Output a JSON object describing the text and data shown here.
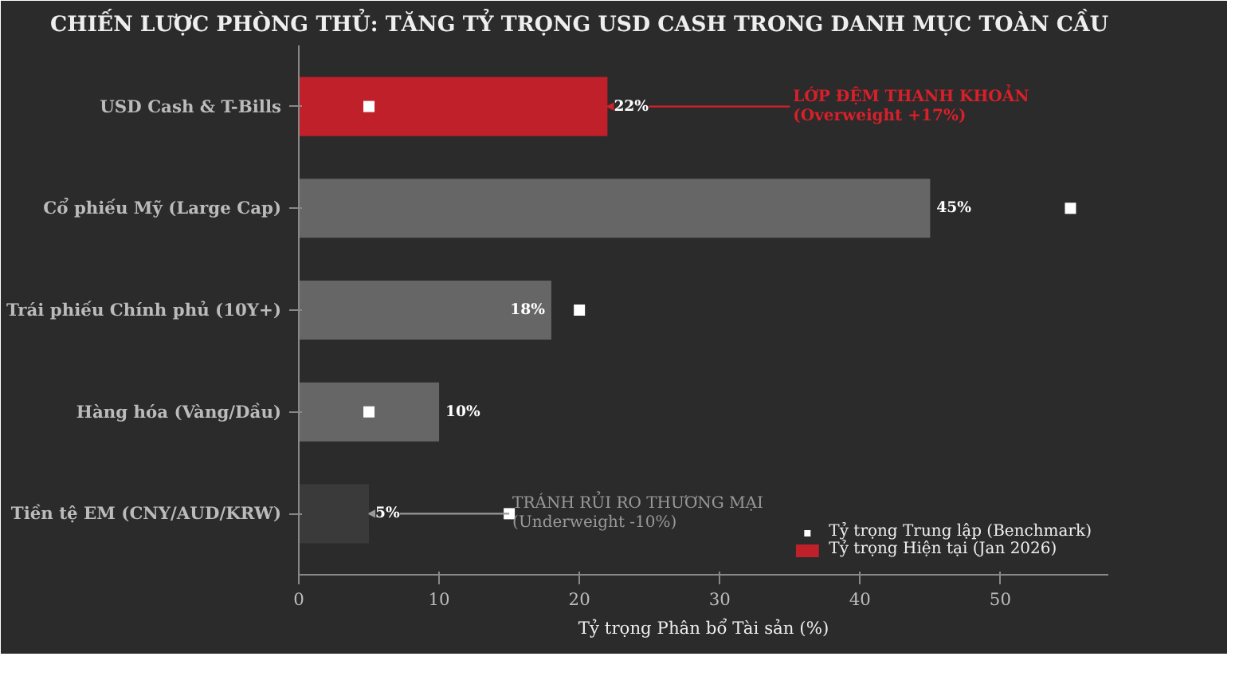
{
  "chart_data": {
    "type": "bar",
    "orientation": "horizontal",
    "title": "CHIẾN LƯỢC PHÒNG THỦ: TĂNG TỶ TRỌNG USD CASH TRONG DANH MỤC TOÀN CẦU",
    "xlabel": "Tỷ trọng Phân bổ Tài sản (%)",
    "categories": [
      "USD Cash & T-Bills",
      "Cổ phiếu Mỹ (Large Cap)",
      "Trái phiếu Chính phủ (10Y+)",
      "Hàng hóa (Vàng/Dầu)",
      "Tiền tệ EM (CNY/AUD/KRW)"
    ],
    "series": [
      {
        "name": "Tỷ trọng Hiện tại (Jan 2026)",
        "color": "#c0202a",
        "colors": [
          "#c0202a",
          "#666666",
          "#666666",
          "#666666",
          "#3a3a3a"
        ],
        "values": [
          22,
          45,
          18,
          10,
          5
        ],
        "value_labels": [
          "22%",
          "45%",
          "18%",
          "10%",
          "5%"
        ]
      },
      {
        "name": "Tỷ trọng Trung lập (Benchmark)",
        "type": "scatter",
        "marker": "square",
        "color": "#ffffff",
        "values": [
          5,
          55,
          20,
          5,
          15
        ]
      }
    ],
    "annotations": [
      {
        "text": "LỚP ĐỆM THANH KHOẢN\n(Overweight +17%)",
        "x": 22,
        "y": "USD Cash & T-Bills"
      },
      {
        "text": "TRÁNH RỦI RO THƯƠNG MẠI\n(Underweight -10%)",
        "x": 5,
        "y": "Tiền tệ EM (CNY/AUD/KRW)"
      }
    ],
    "xlim": [
      0,
      57.7
    ],
    "xticks": [
      0,
      10,
      20,
      30,
      40,
      50
    ],
    "grid": false,
    "legend": "bottom right"
  }
}
